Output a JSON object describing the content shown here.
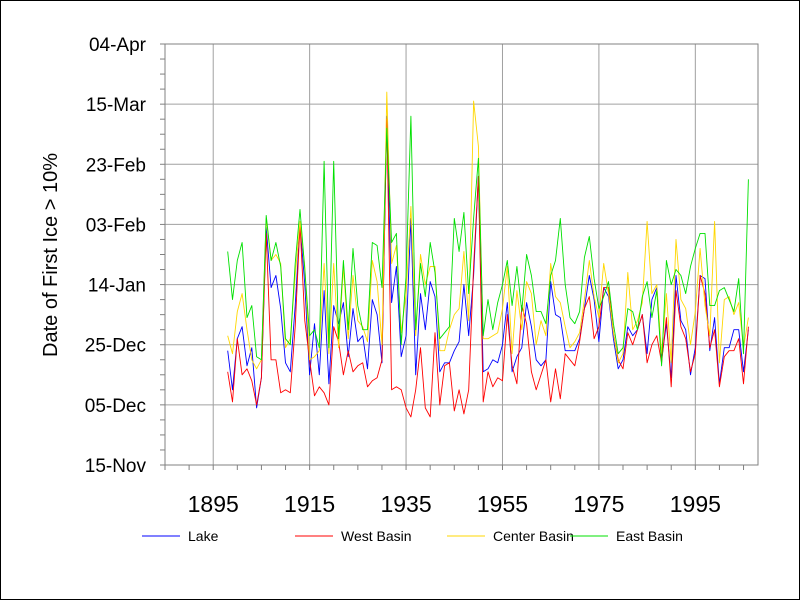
{
  "chart_data": {
    "type": "line",
    "title": "",
    "xlabel": "",
    "ylabel": "Date of First Ice > 10%",
    "x_tick_labels": [
      "1895",
      "1915",
      "1935",
      "1955",
      "1975",
      "1995"
    ],
    "x_ticks": [
      1895,
      1915,
      1935,
      1955,
      1975,
      1995
    ],
    "xlim": [
      1885,
      2008
    ],
    "y_tick_labels": [
      "04-Apr",
      "15-Mar",
      "23-Feb",
      "03-Feb",
      "14-Jan",
      "25-Dec",
      "05-Dec",
      "15-Nov"
    ],
    "y_ticks": [
      "04-Apr",
      "15-Mar",
      "23-Feb",
      "03-Feb",
      "14-Jan",
      "25-Dec",
      "05-Dec",
      "15-Nov"
    ],
    "ylim": [
      "15-Nov",
      "04-Apr"
    ],
    "grid": true,
    "legend_position": "bottom",
    "x": [
      1898,
      1899,
      1900,
      1901,
      1902,
      1903,
      1904,
      1905,
      1906,
      1907,
      1908,
      1909,
      1910,
      1911,
      1912,
      1913,
      1914,
      1915,
      1916,
      1917,
      1918,
      1919,
      1920,
      1921,
      1922,
      1923,
      1924,
      1925,
      1926,
      1927,
      1928,
      1929,
      1930,
      1931,
      1932,
      1933,
      1934,
      1935,
      1936,
      1937,
      1938,
      1939,
      1940,
      1941,
      1942,
      1943,
      1944,
      1945,
      1946,
      1947,
      1948,
      1949,
      1950,
      1951,
      1952,
      1953,
      1954,
      1955,
      1956,
      1957,
      1958,
      1959,
      1960,
      1961,
      1962,
      1963,
      1964,
      1965,
      1966,
      1967,
      1968,
      1969,
      1970,
      1971,
      1972,
      1973,
      1974,
      1975,
      1976,
      1977,
      1978,
      1979,
      1980,
      1981,
      1982,
      1983,
      1984,
      1985,
      1986,
      1987,
      1988,
      1989,
      1990,
      1991,
      1992,
      1993,
      1994,
      1995,
      1996,
      1997,
      1998,
      1999,
      2000,
      2001,
      2002,
      2003,
      2004,
      2005,
      2006
    ],
    "series": [
      {
        "name": "Lake",
        "color": "#0000ff",
        "values": [
          "23-Dec",
          "10-Dec",
          "27-Dec",
          "31-Dec",
          "18-Dec",
          "24-Dec",
          "04-Dec",
          "14-Dec",
          "02-Feb",
          "13-Jan",
          "17-Jan",
          "06-Jan",
          "19-Dec",
          "16-Dec",
          "07-Jan",
          "03-Feb",
          "14-Jan",
          "15-Dec",
          "01-Jan",
          "15-Dec",
          "12-Jan",
          "12-Dec",
          "07-Jan",
          "01-Jan",
          "08-Jan",
          "21-Dec",
          "06-Jan",
          "26-Dec",
          "28-Dec",
          "17-Dec",
          "09-Jan",
          "04-Jan",
          "19-Dec",
          "11-Mar",
          "08-Jan",
          "20-Jan",
          "21-Dec",
          "28-Dec",
          "05-Feb",
          "15-Dec",
          "11-Jan",
          "30-Dec",
          "15-Jan",
          "10-Jan",
          "16-Dec",
          "19-Dec",
          "19-Dec",
          "23-Dec",
          "26-Dec",
          "14-Jan",
          "28-Dec",
          "17-Jan",
          "19-Feb",
          "16-Dec",
          "17-Dec",
          "20-Dec",
          "19-Dec",
          "25-Dec",
          "08-Jan",
          "16-Dec",
          "21-Dec",
          "24-Dec",
          "08-Jan",
          "31-Dec",
          "20-Dec",
          "18-Dec",
          "20-Dec",
          "15-Jan",
          "04-Jan",
          "03-Jan",
          "23-Dec",
          "23-Dec",
          "23-Dec",
          "27-Dec",
          "06-Jan",
          "17-Jan",
          "09-Jan",
          "26-Dec",
          "13-Jan",
          "10-Jan",
          "27-Dec",
          "17-Dec",
          "20-Dec",
          "31-Dec",
          "28-Dec",
          "30-Dec",
          "04-Jan",
          "22-Dec",
          "09-Jan",
          "13-Jan",
          "20-Dec",
          "01-Jan",
          "14-Dec",
          "17-Jan",
          "02-Jan",
          "30-Dec",
          "15-Dec",
          "24-Dec",
          "17-Jan",
          "16-Jan",
          "23-Dec",
          "03-Jan",
          "12-Dec",
          "24-Dec",
          "24-Dec",
          "30-Dec",
          "30-Dec",
          "16-Dec",
          "30-Dec"
        ]
      },
      {
        "name": "West Basin",
        "color": "#ff0000",
        "values": [
          "16-Dec",
          "06-Dec",
          "27-Dec",
          "15-Dec",
          "17-Dec",
          "13-Dec",
          "05-Dec",
          "14-Dec",
          "31-Jan",
          "20-Dec",
          "20-Dec",
          "09-Dec",
          "10-Dec",
          "09-Dec",
          "31-Dec",
          "03-Feb",
          "02-Jan",
          "20-Dec",
          "08-Dec",
          "11-Dec",
          "09-Dec",
          "05-Dec",
          "31-Dec",
          "26-Dec",
          "15-Dec",
          "23-Dec",
          "16-Dec",
          "18-Dec",
          "19-Dec",
          "11-Dec",
          "13-Dec",
          "14-Dec",
          "20-Dec",
          "10-Mar",
          "10-Dec",
          "11-Dec",
          "10-Dec",
          "04-Dec",
          "01-Dec",
          "10-Dec",
          "24-Dec",
          "04-Dec",
          "01-Dec",
          "29-Dec",
          "05-Dec",
          "18-Dec",
          "19-Dec",
          "03-Dec",
          "10-Dec",
          "02-Dec",
          "10-Dec",
          "20-Jan",
          "19-Feb",
          "06-Dec",
          "16-Dec",
          "11-Dec",
          "14-Dec",
          "13-Dec",
          "04-Jan",
          "18-Dec",
          "12-Dec",
          "07-Jan",
          "01-Jan",
          "16-Dec",
          "10-Dec",
          "15-Dec",
          "20-Dec",
          "06-Dec",
          "17-Dec",
          "07-Dec",
          "22-Dec",
          "20-Dec",
          "18-Dec",
          "26-Dec",
          "06-Jan",
          "10-Jan",
          "27-Dec",
          "31-Dec",
          "13-Jan",
          "13-Jan",
          "29-Dec",
          "20-Dec",
          "17-Dec",
          "29-Dec",
          "25-Dec",
          "30-Dec",
          "04-Jan",
          "19-Dec",
          "25-Dec",
          "28-Dec",
          "19-Dec",
          "03-Jan",
          "11-Dec",
          "12-Jan",
          "31-Dec",
          "27-Dec",
          "16-Dec",
          "22-Dec",
          "17-Jan",
          "11-Jan",
          "24-Dec",
          "30-Dec",
          "11-Dec",
          "21-Dec",
          "23-Dec",
          "23-Dec",
          "27-Dec",
          "12-Dec",
          "31-Dec"
        ]
      },
      {
        "name": "Center Basin",
        "color": "#ffd700",
        "values": [
          "28-Dec",
          "22-Dec",
          "05-Jan",
          "11-Jan",
          "30-Dec",
          "20-Dec",
          "17-Dec",
          "20-Dec",
          "05-Feb",
          "22-Jan",
          "24-Jan",
          "21-Jan",
          "24-Dec",
          "27-Dec",
          "17-Jan",
          "04-Feb",
          "20-Jan",
          "20-Dec",
          "21-Dec",
          "23-Dec",
          "21-Jan",
          "22-Dec",
          "21-Jan",
          "24-Dec",
          "20-Jan",
          "27-Dec",
          "17-Jan",
          "02-Jan",
          "31-Dec",
          "26-Dec",
          "22-Jan",
          "15-Jan",
          "25-Dec",
          "19-Mar",
          "21-Jan",
          "27-Jan",
          "29-Dec",
          "11-Jan",
          "09-Feb",
          "28-Dec",
          "24-Jan",
          "14-Jan",
          "20-Jan",
          "20-Jan",
          "23-Dec",
          "23-Dec",
          "30-Dec",
          "04-Jan",
          "06-Jan",
          "25-Jan",
          "02-Jan",
          "16-Mar",
          "01-Mar",
          "27-Dec",
          "27-Dec",
          "28-Dec",
          "29-Dec",
          "06-Jan",
          "20-Jan",
          "22-Dec",
          "12-Jan",
          "30-Dec",
          "15-Jan",
          "11-Jan",
          "25-Dec",
          "02-Jan",
          "28-Dec",
          "21-Jan",
          "10-Jan",
          "08-Jan",
          "31-Dec",
          "24-Dec",
          "26-Dec",
          "29-Dec",
          "09-Jan",
          "22-Jan",
          "10-Jan",
          "03-Jan",
          "21-Jan",
          "11-Jan",
          "29-Dec",
          "19-Dec",
          "22-Dec",
          "18-Jan",
          "30-Dec",
          "02-Jan",
          "08-Jan",
          "04-Feb",
          "11-Jan",
          "14-Jan",
          "22-Dec",
          "11-Jan",
          "19-Dec",
          "29-Jan",
          "09-Jan",
          "06-Jan",
          "25-Dec",
          "05-Jan",
          "26-Jan",
          "07-Jan",
          "28-Dec",
          "04-Feb",
          "19-Dec",
          "09-Jan",
          "10-Jan",
          "04-Jan",
          "08-Jan",
          "24-Dec",
          "03-Jan"
        ]
      },
      {
        "name": "East Basin",
        "color": "#00e000",
        "values": [
          "25-Jan",
          "09-Jan",
          "22-Jan",
          "28-Jan",
          "03-Jan",
          "07-Jan",
          "21-Dec",
          "20-Dec",
          "06-Feb",
          "22-Jan",
          "28-Jan",
          "20-Jan",
          "27-Dec",
          "25-Dec",
          "21-Jan",
          "08-Feb",
          "19-Jan",
          "28-Dec",
          "30-Dec",
          "24-Dec",
          "24-Feb",
          "24-Dec",
          "24-Feb",
          "27-Dec",
          "22-Jan",
          "30-Dec",
          "26-Jan",
          "07-Jan",
          "30-Dec",
          "30-Dec",
          "28-Jan",
          "27-Jan",
          "13-Jan",
          "07-Mar",
          "28-Jan",
          "31-Jan",
          "25-Dec",
          "17-Jan",
          "11-Mar",
          "30-Dec",
          "21-Jan",
          "10-Jan",
          "28-Jan",
          "18-Jan",
          "27-Dec",
          "29-Dec",
          "31-Dec",
          "05-Feb",
          "25-Jan",
          "07-Feb",
          "11-Jan",
          "05-Feb",
          "25-Feb",
          "28-Dec",
          "09-Jan",
          "30-Dec",
          "08-Jan",
          "14-Jan",
          "22-Jan",
          "07-Jan",
          "20-Jan",
          "05-Jan",
          "24-Jan",
          "17-Jan",
          "05-Jan",
          "05-Jan",
          "01-Jan",
          "17-Jan",
          "22-Jan",
          "05-Feb",
          "14-Jan",
          "03-Jan",
          "01-Jan",
          "05-Jan",
          "23-Jan",
          "30-Jan",
          "16-Jan",
          "06-Jan",
          "10-Jan",
          "15-Jan",
          "01-Jan",
          "22-Dec",
          "24-Dec",
          "06-Jan",
          "05-Jan",
          "30-Dec",
          "10-Jan",
          "15-Jan",
          "03-Jan",
          "12-Jan",
          "18-Dec",
          "22-Jan",
          "14-Jan",
          "19-Jan",
          "17-Jan",
          "11-Jan",
          "20-Jan",
          "26-Jan",
          "31-Jan",
          "31-Jan",
          "07-Jan",
          "07-Jan",
          "12-Jan",
          "13-Jan",
          "09-Jan",
          "05-Jan",
          "16-Jan",
          "22-Dec",
          "18-Feb"
        ]
      }
    ]
  }
}
